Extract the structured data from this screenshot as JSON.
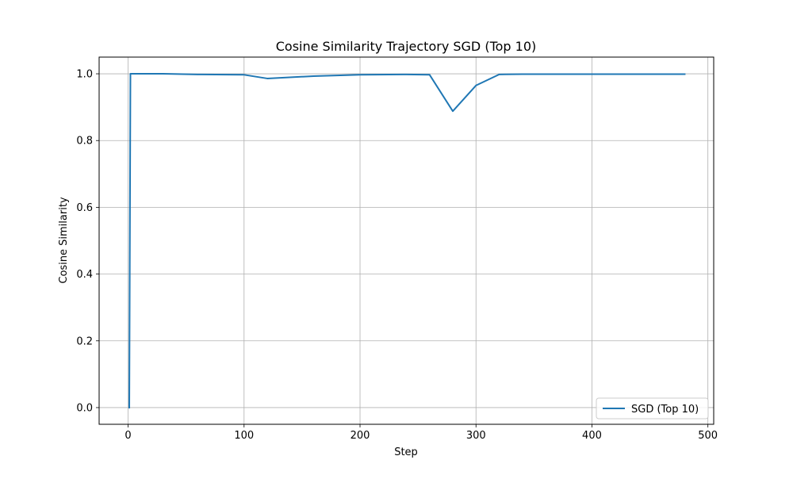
{
  "chart_data": {
    "type": "line",
    "title": "Cosine Similarity Trajectory SGD (Top 10)",
    "xlabel": "Step",
    "ylabel": "Cosine Similarity",
    "xlim": [
      -25,
      505
    ],
    "ylim": [
      -0.05,
      1.05
    ],
    "xticks": [
      0,
      100,
      200,
      300,
      400,
      500
    ],
    "yticks": [
      0.0,
      0.2,
      0.4,
      0.6,
      0.8,
      1.0
    ],
    "xtick_labels": [
      "0",
      "100",
      "200",
      "300",
      "400",
      "500"
    ],
    "ytick_labels": [
      "0.0",
      "0.2",
      "0.4",
      "0.6",
      "0.8",
      "1.0"
    ],
    "grid": true,
    "legend_position": "bottom-right",
    "series": [
      {
        "name": "SGD (Top 10)",
        "color": "#1f77b4",
        "x": [
          1,
          2,
          30,
          60,
          100,
          120,
          160,
          200,
          240,
          260,
          280,
          300,
          320,
          340,
          380,
          420,
          460,
          480
        ],
        "y": [
          0.0,
          1.0,
          1.0,
          0.998,
          0.997,
          0.986,
          0.993,
          0.997,
          0.998,
          0.997,
          0.888,
          0.965,
          0.998,
          0.999,
          0.999,
          0.999,
          0.999,
          0.999
        ]
      }
    ]
  }
}
